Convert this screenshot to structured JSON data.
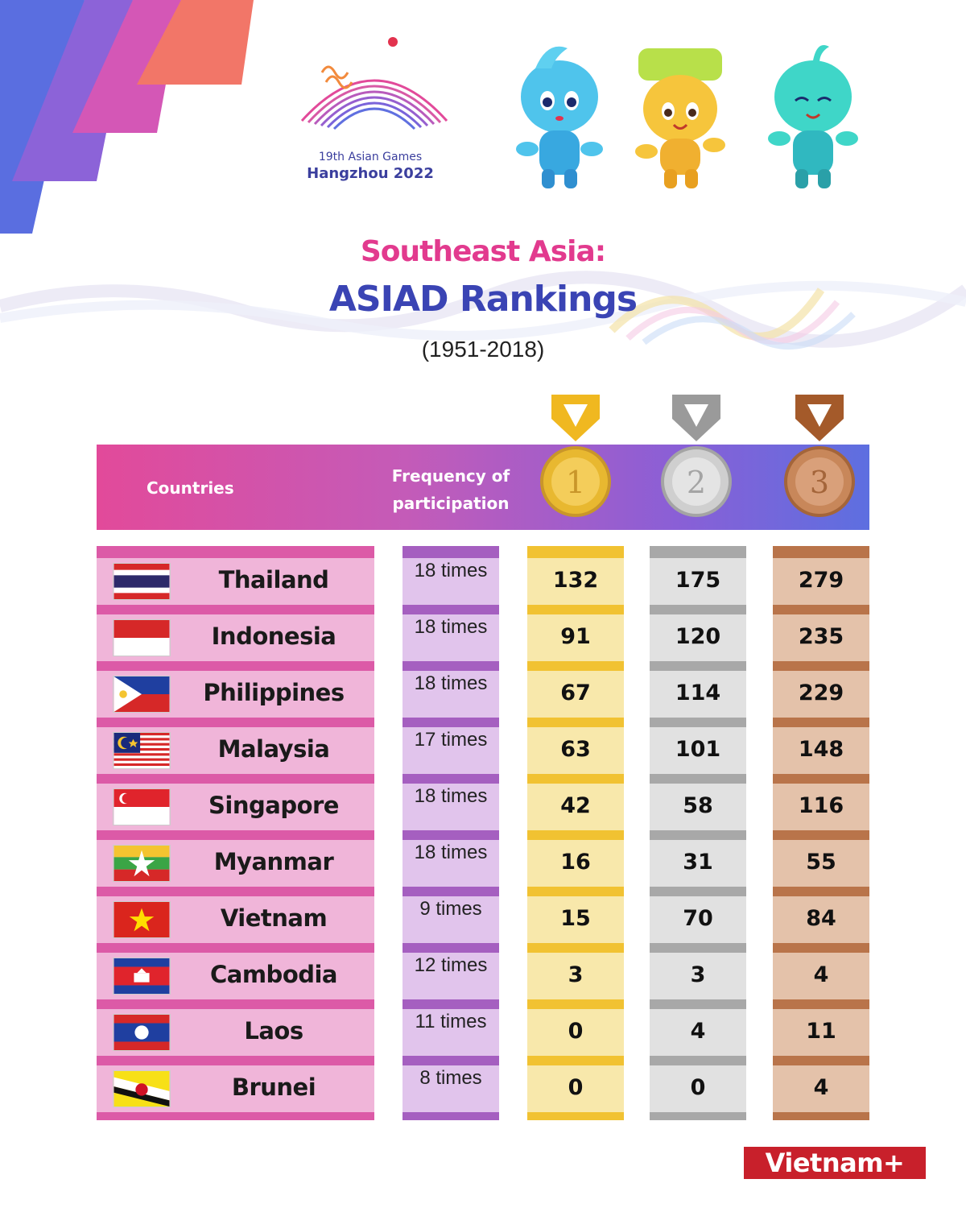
{
  "logo": {
    "line1": "19th Asian Games",
    "line2": "Hangzhou 2022"
  },
  "title": {
    "line1": "Southeast Asia:",
    "line2": "ASIAD Rankings",
    "line3": "(1951-2018)"
  },
  "header": {
    "countries": "Countries",
    "frequency_line1": "Frequency of",
    "frequency_line2": "participation",
    "gold_medal_number": "1",
    "silver_medal_number": "2",
    "bronze_medal_number": "3"
  },
  "colors": {
    "gold": "#f1c232",
    "silver": "#a8a8a8",
    "bronze": "#b9744a",
    "pink": "#e23a8e",
    "blue": "#3a44b4"
  },
  "rows": [
    {
      "country": "Thailand",
      "flag": "thailand-flag",
      "frequency": "18 times",
      "gold": "132",
      "silver": "175",
      "bronze": "279"
    },
    {
      "country": "Indonesia",
      "flag": "indonesia-flag",
      "frequency": "18 times",
      "gold": "91",
      "silver": "120",
      "bronze": "235"
    },
    {
      "country": "Philippines",
      "flag": "philippines-flag",
      "frequency": "18 times",
      "gold": "67",
      "silver": "114",
      "bronze": "229"
    },
    {
      "country": "Malaysia",
      "flag": "malaysia-flag",
      "frequency": "17 times",
      "gold": "63",
      "silver": "101",
      "bronze": "148"
    },
    {
      "country": "Singapore",
      "flag": "singapore-flag",
      "frequency": "18 times",
      "gold": "42",
      "silver": "58",
      "bronze": "116"
    },
    {
      "country": "Myanmar",
      "flag": "myanmar-flag",
      "frequency": "18 times",
      "gold": "16",
      "silver": "31",
      "bronze": "55"
    },
    {
      "country": "Vietnam",
      "flag": "vietnam-flag",
      "frequency": "9 times",
      "gold": "15",
      "silver": "70",
      "bronze": "84"
    },
    {
      "country": "Cambodia",
      "flag": "cambodia-flag",
      "frequency": "12 times",
      "gold": "3",
      "silver": "3",
      "bronze": "4"
    },
    {
      "country": "Laos",
      "flag": "laos-flag",
      "frequency": "11 times",
      "gold": "0",
      "silver": "4",
      "bronze": "11"
    },
    {
      "country": "Brunei",
      "flag": "brunei-flag",
      "frequency": "8 times",
      "gold": "0",
      "silver": "0",
      "bronze": "4"
    }
  ],
  "brand": "Vietnam+"
}
